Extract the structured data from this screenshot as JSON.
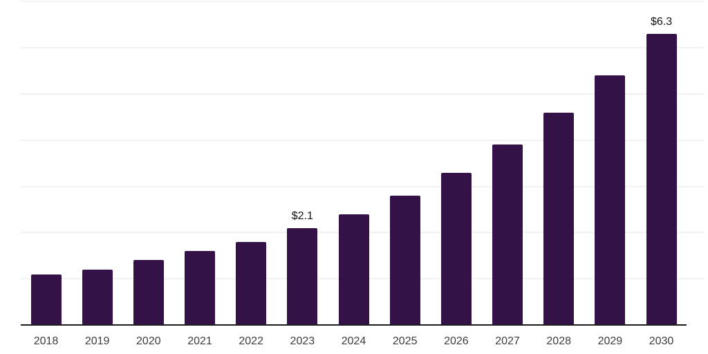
{
  "chart_data": {
    "type": "bar",
    "title": "",
    "xlabel": "",
    "ylabel": "",
    "categories": [
      "2018",
      "2019",
      "2020",
      "2021",
      "2022",
      "2023",
      "2024",
      "2025",
      "2026",
      "2027",
      "2028",
      "2029",
      "2030"
    ],
    "values": [
      1.1,
      1.2,
      1.4,
      1.6,
      1.8,
      2.1,
      2.4,
      2.8,
      3.3,
      3.9,
      4.6,
      5.4,
      6.3
    ],
    "annotations": [
      {
        "category": "2023",
        "text": "$2.1"
      },
      {
        "category": "2030",
        "text": "$6.3"
      }
    ],
    "ylim": [
      0,
      7
    ],
    "grid": "horizontal",
    "gridline_count": 7,
    "legend": "none",
    "colors": {
      "bar": "#341147",
      "gridline": "#f2f2f2",
      "axis_line": "#1c1c1c",
      "tick_label": "#3c3c3c",
      "annotation_label": "#111111",
      "background": "#ffffff"
    }
  }
}
